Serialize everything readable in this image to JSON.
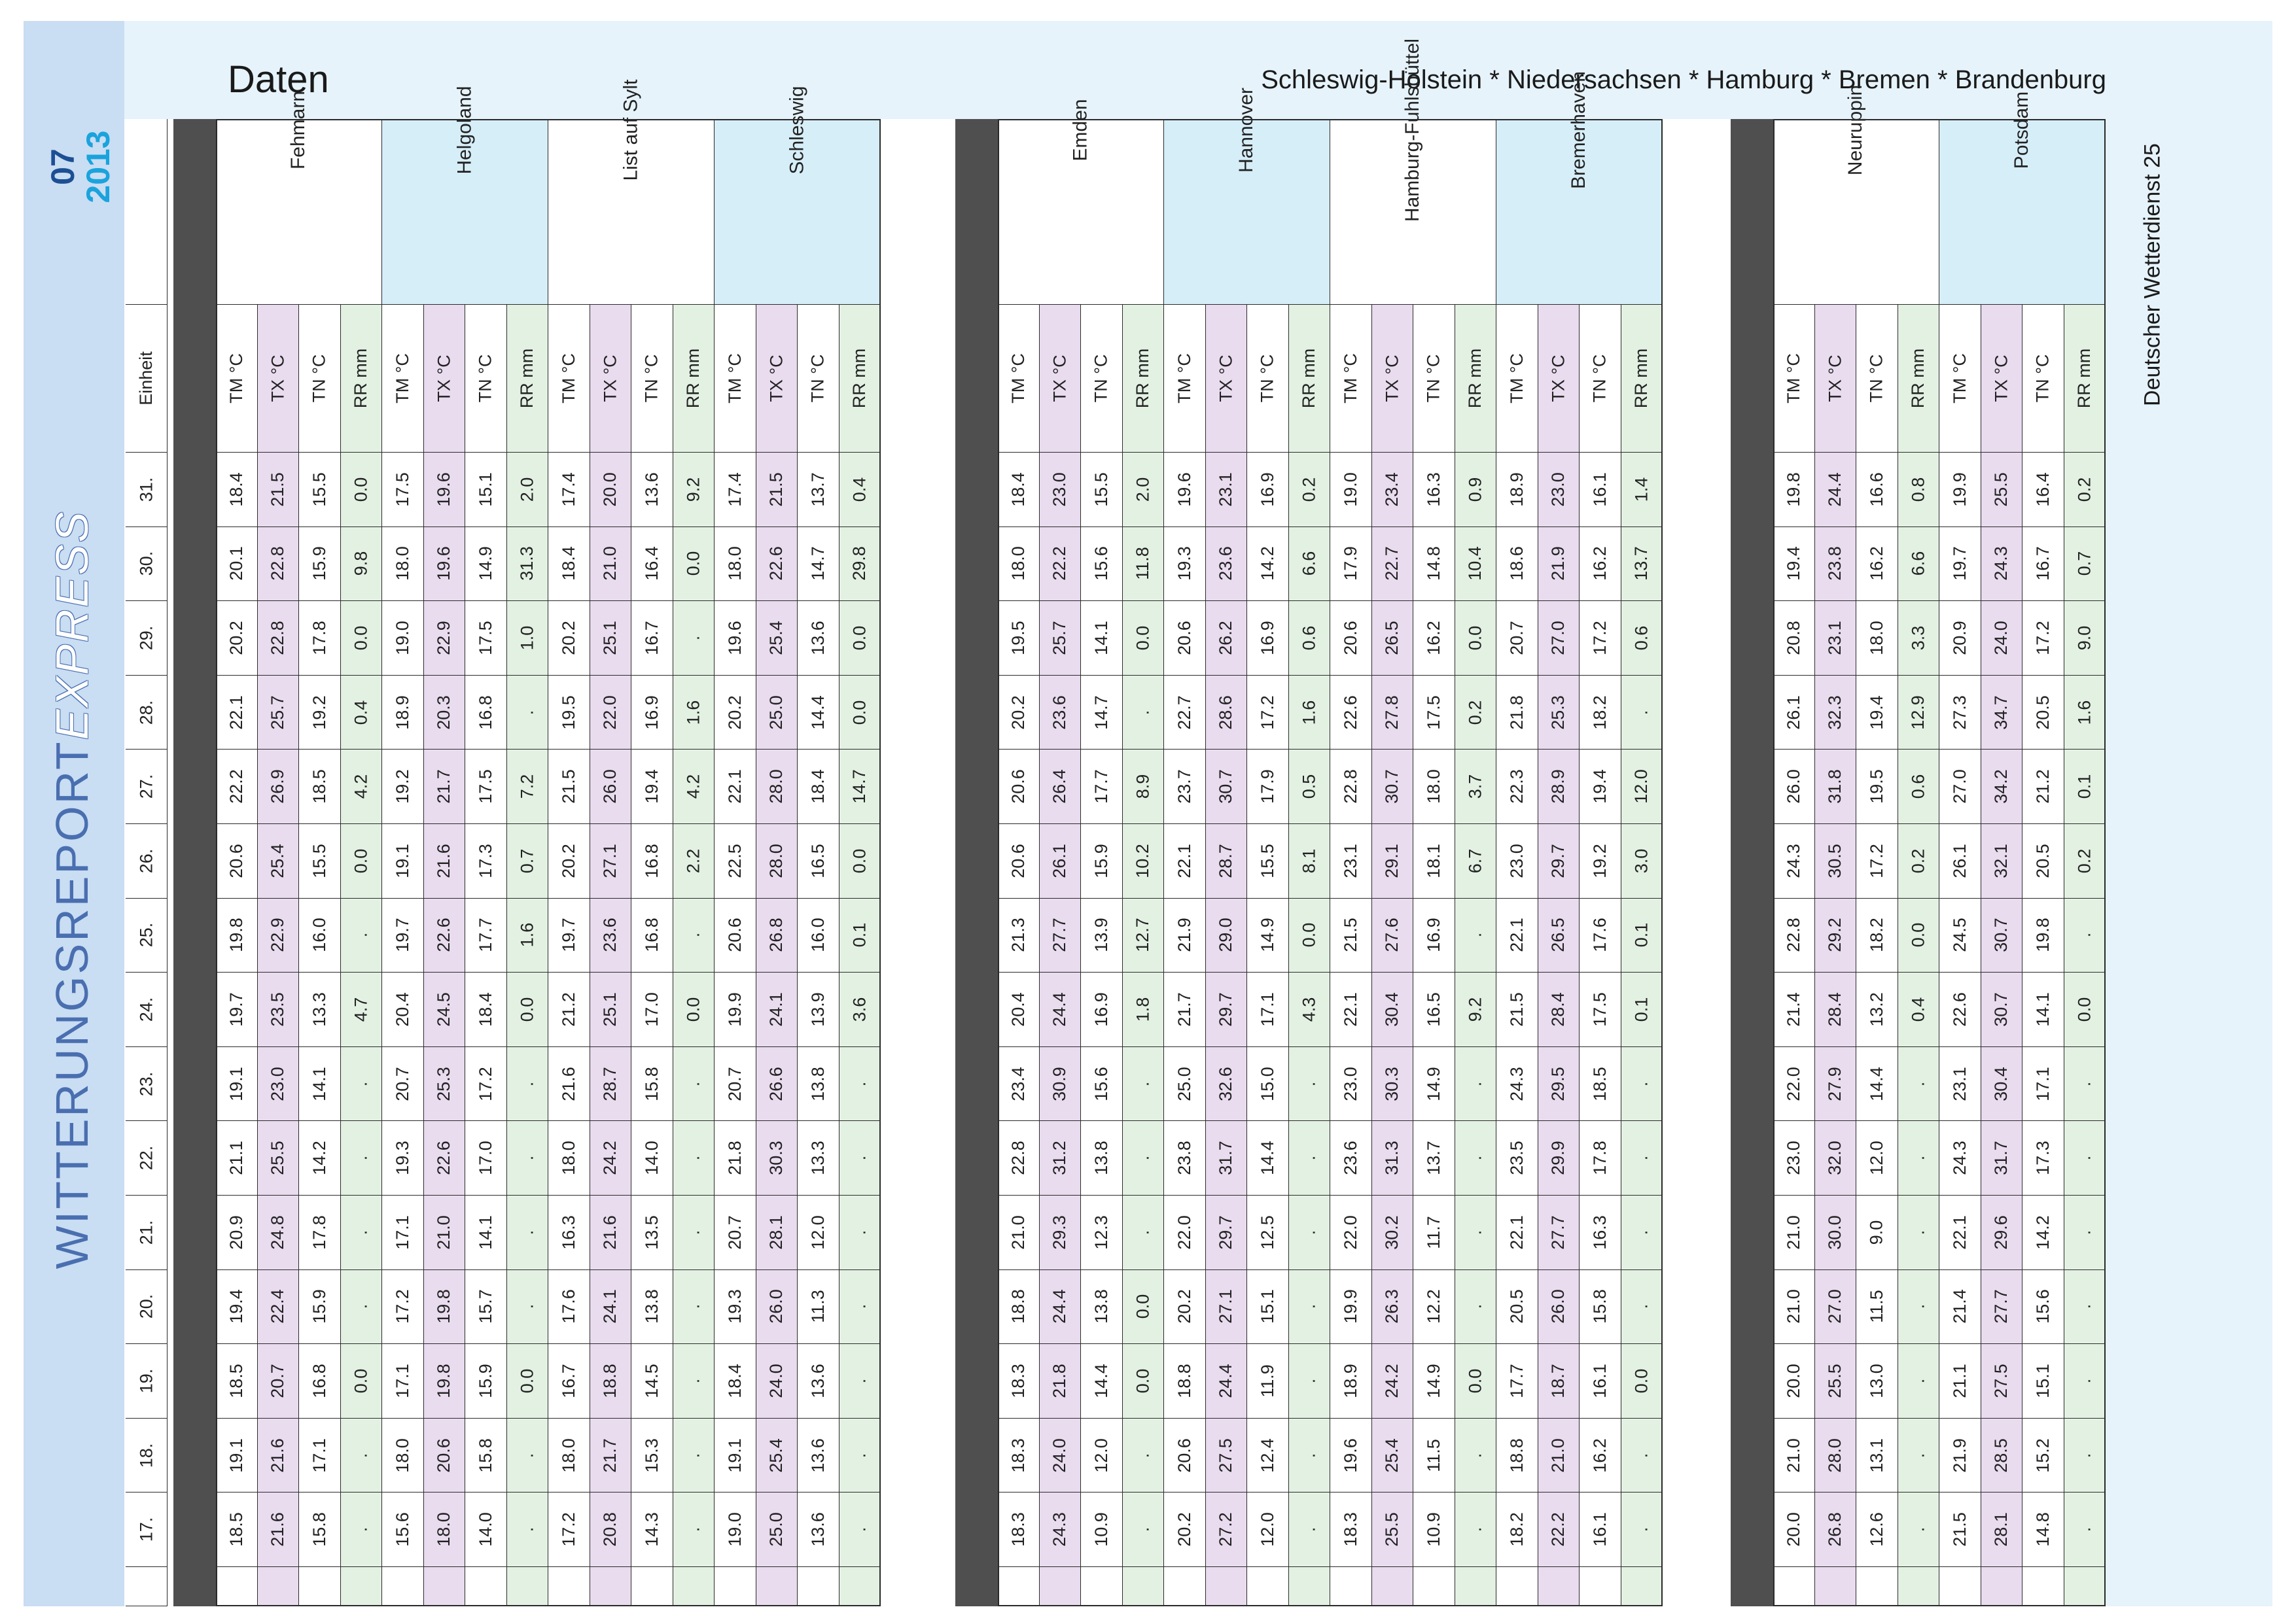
{
  "header": {
    "title": "Daten",
    "subtitle": "Schleswig-Holstein * Niedersachsen * Hamburg * Bremen * Brandenburg"
  },
  "report": {
    "title_main": "WITTERUNGSREPORT",
    "title_express": "EXPRESS",
    "month": "07",
    "year": "2013"
  },
  "footer": {
    "publisher": "Deutscher Wetterdienst 25"
  },
  "colors": {
    "tm": "#ffffff",
    "tx": "#e9dcef",
    "tn": "#ffffff",
    "rr": "#e3f1e3",
    "blue_header": "#d6eef8",
    "band": "#c9ddf3",
    "dark": "#4f4f4f"
  },
  "table": {
    "einheit_label": "Einheit",
    "days": [
      "31.",
      "30.",
      "29.",
      "28.",
      "27.",
      "26.",
      "25.",
      "24.",
      "23.",
      "22.",
      "21.",
      "20.",
      "19.",
      "18.",
      "17."
    ],
    "parameters": [
      "TM °C",
      "TX °C",
      "TN °C",
      "RR mm"
    ],
    "stations": [
      {
        "name": "Fehmarn",
        "values": [
          [
            "18.4",
            "20.1",
            "20.2",
            "22.1",
            "22.2",
            "20.6",
            "19.8",
            "19.7",
            "19.1",
            "21.1",
            "20.9",
            "19.4",
            "18.5",
            "19.1",
            "18.5"
          ],
          [
            "21.5",
            "22.8",
            "22.8",
            "25.7",
            "26.9",
            "25.4",
            "22.9",
            "23.5",
            "23.0",
            "25.5",
            "24.8",
            "22.4",
            "20.7",
            "21.6",
            "21.6"
          ],
          [
            "15.5",
            "15.9",
            "17.8",
            "19.2",
            "18.5",
            "15.5",
            "16.0",
            "13.3",
            "14.1",
            "14.2",
            "17.8",
            "15.9",
            "16.8",
            "17.1",
            "15.8"
          ],
          [
            "0.0",
            "9.8",
            "0.0",
            "0.4",
            "4.2",
            "0.0",
            ".",
            "4.7",
            ".",
            ".",
            ".",
            ".",
            "0.0",
            ".",
            "."
          ]
        ]
      },
      {
        "name": "Helgoland",
        "values": [
          [
            "17.5",
            "18.0",
            "19.0",
            "18.9",
            "19.2",
            "19.1",
            "19.7",
            "20.4",
            "20.7",
            "19.3",
            "17.1",
            "17.2",
            "17.1",
            "18.0",
            "15.6"
          ],
          [
            "19.6",
            "19.6",
            "22.9",
            "20.3",
            "21.7",
            "21.6",
            "22.6",
            "24.5",
            "25.3",
            "22.6",
            "21.0",
            "19.8",
            "19.8",
            "20.6",
            "18.0"
          ],
          [
            "15.1",
            "14.9",
            "17.5",
            "16.8",
            "17.5",
            "17.3",
            "17.7",
            "18.4",
            "17.2",
            "17.0",
            "14.1",
            "15.7",
            "15.9",
            "15.8",
            "14.0"
          ],
          [
            "2.0",
            "31.3",
            "1.0",
            ".",
            "7.2",
            "0.7",
            "1.6",
            "0.0",
            ".",
            ".",
            ".",
            ".",
            "0.0",
            ".",
            "."
          ]
        ]
      },
      {
        "name": "List auf Sylt",
        "values": [
          [
            "17.4",
            "18.4",
            "20.2",
            "19.5",
            "21.5",
            "20.2",
            "19.7",
            "21.2",
            "21.6",
            "18.0",
            "16.3",
            "17.6",
            "16.7",
            "18.0",
            "17.2"
          ],
          [
            "20.0",
            "21.0",
            "25.1",
            "22.0",
            "26.0",
            "27.1",
            "23.6",
            "25.1",
            "28.7",
            "24.2",
            "21.6",
            "24.1",
            "18.8",
            "21.7",
            "20.8"
          ],
          [
            "13.6",
            "16.4",
            "16.7",
            "16.9",
            "19.4",
            "16.8",
            "16.8",
            "17.0",
            "15.8",
            "14.0",
            "13.5",
            "13.8",
            "14.5",
            "15.3",
            "14.3"
          ],
          [
            "9.2",
            "0.0",
            ".",
            "1.6",
            "4.2",
            "2.2",
            ".",
            "0.0",
            ".",
            ".",
            ".",
            ".",
            ".",
            ".",
            "."
          ]
        ]
      },
      {
        "name": "Schleswig",
        "values": [
          [
            "17.4",
            "18.0",
            "19.6",
            "20.2",
            "22.1",
            "22.5",
            "20.6",
            "19.9",
            "20.7",
            "21.8",
            "20.7",
            "19.3",
            "18.4",
            "19.1",
            "19.0"
          ],
          [
            "21.5",
            "22.6",
            "25.4",
            "25.0",
            "28.0",
            "28.0",
            "26.8",
            "24.1",
            "26.6",
            "30.3",
            "28.1",
            "26.0",
            "24.0",
            "25.4",
            "25.0"
          ],
          [
            "13.7",
            "14.7",
            "13.6",
            "14.4",
            "18.4",
            "16.5",
            "16.0",
            "13.9",
            "13.8",
            "13.3",
            "12.0",
            "11.3",
            "13.6",
            "13.6",
            "13.6"
          ],
          [
            "0.4",
            "29.8",
            "0.0",
            "0.0",
            "14.7",
            "0.0",
            "0.1",
            "3.6",
            ".",
            ".",
            ".",
            ".",
            ".",
            ".",
            "."
          ]
        ]
      },
      {
        "name": "Emden",
        "values": [
          [
            "18.4",
            "18.0",
            "19.5",
            "20.2",
            "20.6",
            "20.6",
            "21.3",
            "20.4",
            "23.4",
            "22.8",
            "21.0",
            "18.8",
            "18.3",
            "18.3",
            "18.3"
          ],
          [
            "23.0",
            "22.2",
            "25.7",
            "23.6",
            "26.4",
            "26.1",
            "27.7",
            "24.4",
            "30.9",
            "31.2",
            "29.3",
            "24.4",
            "21.8",
            "24.0",
            "24.3"
          ],
          [
            "15.5",
            "15.6",
            "14.1",
            "14.7",
            "17.7",
            "15.9",
            "13.9",
            "16.9",
            "15.6",
            "13.8",
            "12.3",
            "13.8",
            "14.4",
            "12.0",
            "10.9"
          ],
          [
            "2.0",
            "11.8",
            "0.0",
            ".",
            "8.9",
            "10.2",
            "12.7",
            "1.8",
            ".",
            ".",
            ".",
            "0.0",
            "0.0",
            ".",
            "."
          ]
        ]
      },
      {
        "name": "Hannover",
        "values": [
          [
            "19.6",
            "19.3",
            "20.6",
            "22.7",
            "23.7",
            "22.1",
            "21.9",
            "21.7",
            "25.0",
            "23.8",
            "22.0",
            "20.2",
            "18.8",
            "20.6",
            "20.2"
          ],
          [
            "23.1",
            "23.6",
            "26.2",
            "28.6",
            "30.7",
            "28.7",
            "29.0",
            "29.7",
            "32.6",
            "31.7",
            "29.7",
            "27.1",
            "24.4",
            "27.5",
            "27.2"
          ],
          [
            "16.9",
            "14.2",
            "16.9",
            "17.2",
            "17.9",
            "15.5",
            "14.9",
            "17.1",
            "15.0",
            "14.4",
            "12.5",
            "15.1",
            "11.9",
            "12.4",
            "12.0"
          ],
          [
            "0.2",
            "6.6",
            "0.6",
            "1.6",
            "0.5",
            "8.1",
            "0.0",
            "4.3",
            ".",
            ".",
            ".",
            ".",
            ".",
            ".",
            "."
          ]
        ]
      },
      {
        "name": "Hamburg-Fuhlsbüttel",
        "values": [
          [
            "19.0",
            "17.9",
            "20.6",
            "22.6",
            "22.8",
            "23.1",
            "21.5",
            "22.1",
            "23.0",
            "23.6",
            "22.0",
            "19.9",
            "18.9",
            "19.6",
            "18.3"
          ],
          [
            "23.4",
            "22.7",
            "26.5",
            "27.8",
            "30.7",
            "29.1",
            "27.6",
            "30.4",
            "30.3",
            "31.3",
            "30.2",
            "26.3",
            "24.2",
            "25.4",
            "25.5"
          ],
          [
            "16.3",
            "14.8",
            "16.2",
            "17.5",
            "18.0",
            "18.1",
            "16.9",
            "16.5",
            "14.9",
            "13.7",
            "11.7",
            "12.2",
            "14.9",
            "11.5",
            "10.9"
          ],
          [
            "0.9",
            "10.4",
            "0.0",
            "0.2",
            "3.7",
            "6.7",
            ".",
            "9.2",
            ".",
            ".",
            ".",
            ".",
            "0.0",
            ".",
            "."
          ]
        ]
      },
      {
        "name": "Bremerhaven",
        "values": [
          [
            "18.9",
            "18.6",
            "20.7",
            "21.8",
            "22.3",
            "23.0",
            "22.1",
            "21.5",
            "24.3",
            "23.5",
            "22.1",
            "20.5",
            "17.7",
            "18.8",
            "18.2"
          ],
          [
            "23.0",
            "21.9",
            "27.0",
            "25.3",
            "28.9",
            "29.7",
            "26.5",
            "28.4",
            "29.5",
            "29.9",
            "27.7",
            "26.0",
            "18.7",
            "21.0",
            "22.2"
          ],
          [
            "16.1",
            "16.2",
            "17.2",
            "18.2",
            "19.4",
            "19.2",
            "17.6",
            "17.5",
            "18.5",
            "17.8",
            "16.3",
            "15.8",
            "16.1",
            "16.2",
            "16.1"
          ],
          [
            "1.4",
            "13.7",
            "0.6",
            ".",
            "12.0",
            "3.0",
            "0.1",
            "0.1",
            ".",
            ".",
            ".",
            ".",
            "0.0",
            ".",
            "."
          ]
        ]
      },
      {
        "name": "Neuruppin",
        "values": [
          [
            "19.8",
            "19.4",
            "20.8",
            "26.1",
            "26.0",
            "24.3",
            "22.8",
            "21.4",
            "22.0",
            "23.0",
            "21.0",
            "21.0",
            "20.0",
            "21.0",
            "20.0"
          ],
          [
            "24.4",
            "23.8",
            "23.1",
            "32.3",
            "31.8",
            "30.5",
            "29.2",
            "28.4",
            "27.9",
            "32.0",
            "30.0",
            "27.0",
            "25.5",
            "28.0",
            "26.8"
          ],
          [
            "16.6",
            "16.2",
            "18.0",
            "19.4",
            "19.5",
            "17.2",
            "18.2",
            "13.2",
            "14.4",
            "12.0",
            "9.0",
            "11.5",
            "13.0",
            "13.1",
            "12.6"
          ],
          [
            "0.8",
            "6.6",
            "3.3",
            "12.9",
            "0.6",
            "0.2",
            "0.0",
            "0.4",
            ".",
            ".",
            ".",
            ".",
            ".",
            ".",
            "."
          ]
        ]
      },
      {
        "name": "Potsdam",
        "values": [
          [
            "19.9",
            "19.7",
            "20.9",
            "27.3",
            "27.0",
            "26.1",
            "24.5",
            "22.6",
            "23.1",
            "24.3",
            "22.1",
            "21.4",
            "21.1",
            "21.9",
            "21.5"
          ],
          [
            "25.5",
            "24.3",
            "24.0",
            "34.7",
            "34.2",
            "32.1",
            "30.7",
            "30.7",
            "30.4",
            "31.7",
            "29.6",
            "27.7",
            "27.5",
            "28.5",
            "28.1"
          ],
          [
            "16.4",
            "16.7",
            "17.2",
            "20.5",
            "21.2",
            "20.5",
            "19.8",
            "14.1",
            "17.1",
            "17.3",
            "14.2",
            "15.6",
            "15.1",
            "15.2",
            "14.8"
          ],
          [
            "0.2",
            "0.7",
            "9.0",
            "1.6",
            "0.1",
            "0.2",
            ".",
            "0.0",
            ".",
            ".",
            ".",
            ".",
            ".",
            ".",
            "."
          ]
        ]
      }
    ]
  }
}
